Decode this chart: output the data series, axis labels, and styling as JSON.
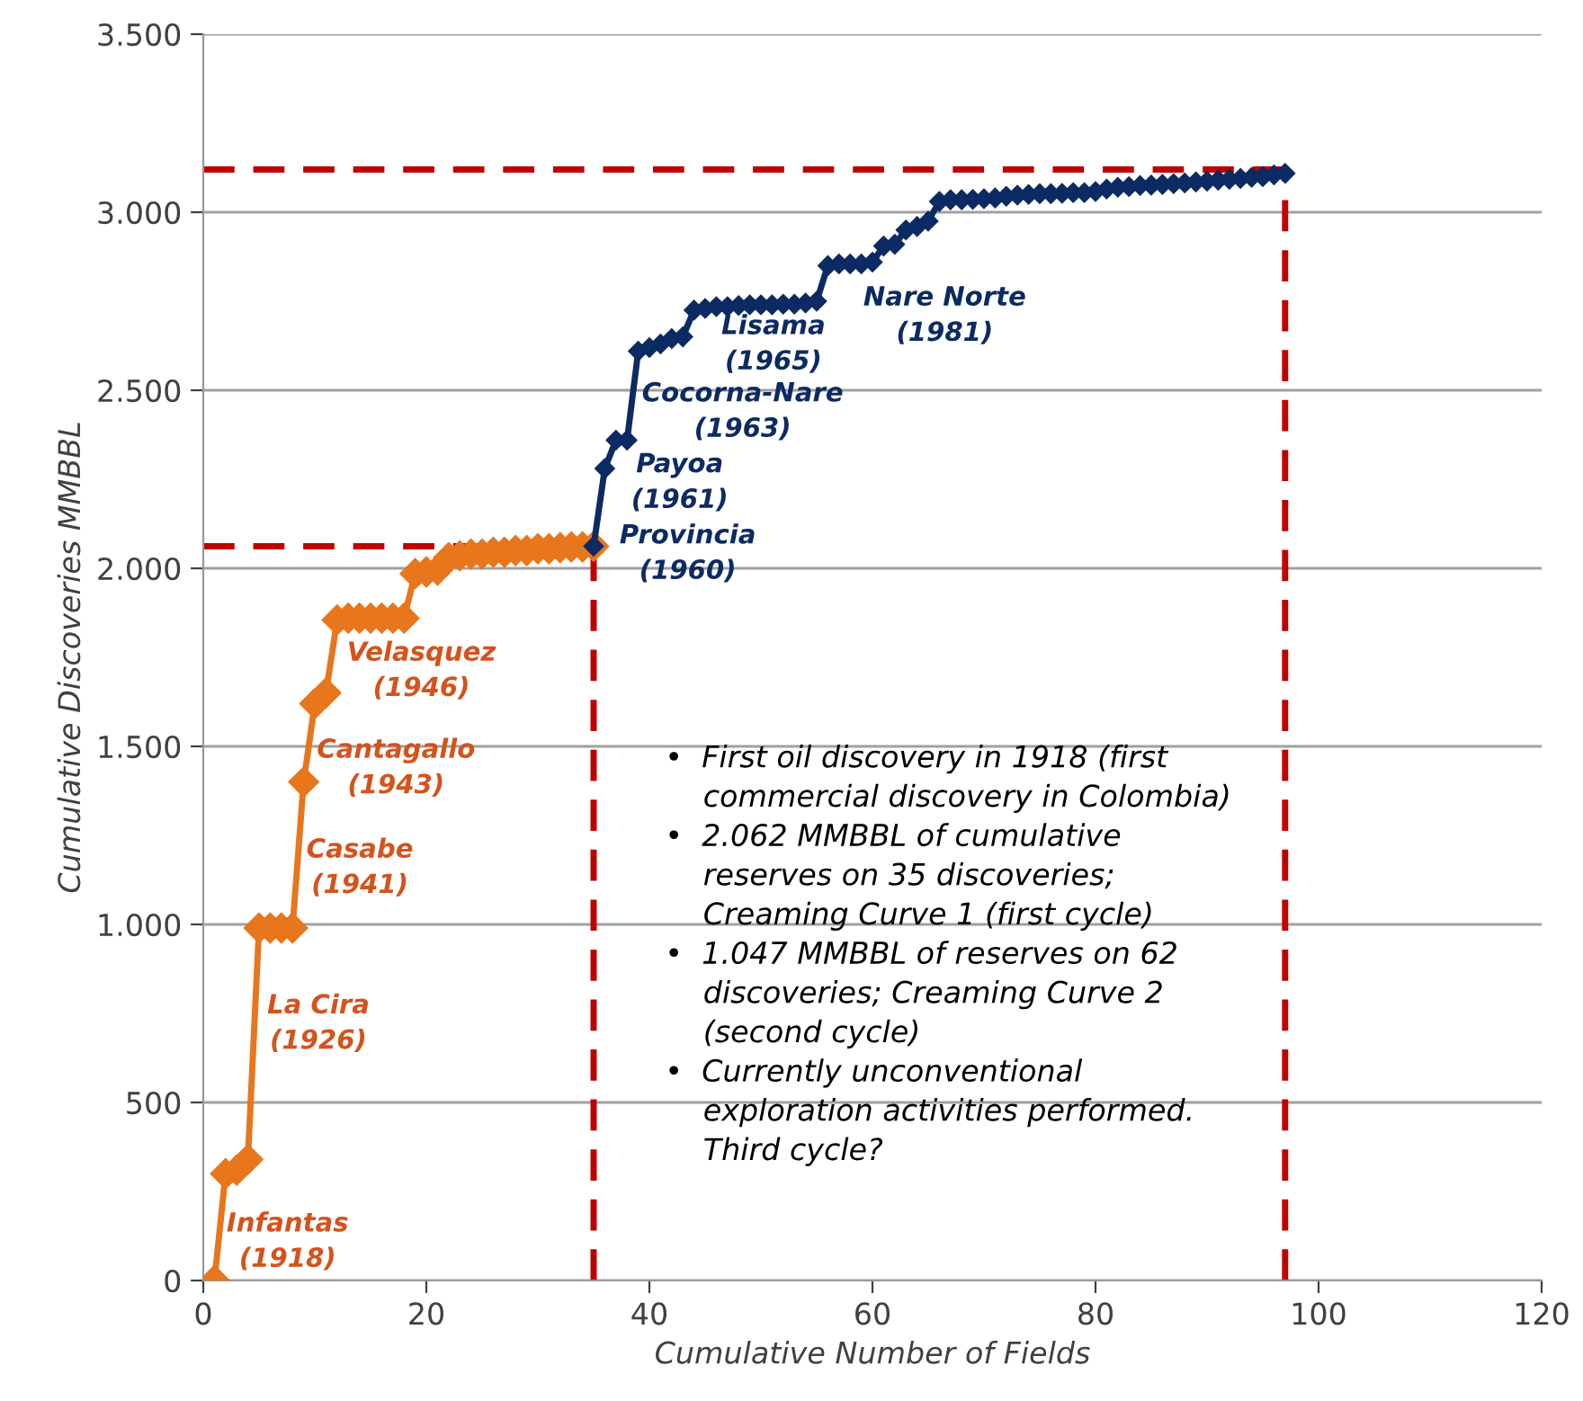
{
  "chart_data": {
    "type": "line",
    "xlabel": "Cumulative Number of Fields",
    "ylabel": "Cumulative Discoveries MMBBL",
    "series": [
      {
        "color": "#e8761c",
        "x": [
          1,
          2,
          3,
          4,
          5,
          6,
          7,
          8,
          9,
          10,
          11,
          12,
          13,
          14,
          15,
          16,
          17,
          18,
          19,
          20,
          21,
          22,
          23,
          24,
          25,
          26,
          27,
          28,
          29,
          30,
          31,
          32,
          33,
          34,
          35
        ],
        "values": [
          0,
          300,
          310,
          340,
          990,
          990,
          990,
          990,
          1400,
          1620,
          1650,
          1855,
          1860,
          1860,
          1860,
          1860,
          1860,
          1860,
          1985,
          1990,
          1995,
          2030,
          2035,
          2040,
          2040,
          2045,
          2045,
          2050,
          2050,
          2055,
          2055,
          2058,
          2060,
          2060,
          2062
        ]
      },
      {
        "color": "#0c2a63",
        "x": [
          35,
          36,
          37,
          38,
          39,
          40,
          41,
          42,
          43,
          44,
          45,
          46,
          47,
          48,
          49,
          50,
          51,
          52,
          53,
          54,
          55,
          56,
          57,
          58,
          59,
          60,
          61,
          62,
          63,
          64,
          65,
          66,
          67,
          68,
          69,
          70,
          71,
          72,
          73,
          74,
          75,
          76,
          77,
          78,
          79,
          80,
          81,
          82,
          83,
          84,
          85,
          86,
          87,
          88,
          89,
          90,
          91,
          92,
          93,
          94,
          95,
          96,
          97
        ],
        "values": [
          2062,
          2280,
          2360,
          2360,
          2610,
          2620,
          2630,
          2645,
          2650,
          2725,
          2730,
          2735,
          2735,
          2738,
          2740,
          2740,
          2740,
          2742,
          2742,
          2745,
          2750,
          2850,
          2855,
          2855,
          2855,
          2860,
          2905,
          2910,
          2950,
          2960,
          2975,
          3030,
          3035,
          3035,
          3036,
          3038,
          3040,
          3045,
          3048,
          3050,
          3052,
          3052,
          3053,
          3055,
          3055,
          3058,
          3065,
          3070,
          3072,
          3075,
          3076,
          3078,
          3080,
          3082,
          3085,
          3087,
          3090,
          3092,
          3095,
          3098,
          3100,
          3105,
          3109
        ]
      }
    ],
    "marker": "diamond",
    "line_style": "solid",
    "grid": "y",
    "xlim": [
      0,
      120
    ],
    "xticks": [
      0,
      20,
      40,
      60,
      80,
      100,
      120
    ],
    "ylim": [
      0,
      3500
    ],
    "yticks": [
      0,
      500,
      {
        "value": 1000,
        "label": "1.000"
      },
      {
        "value": 1500,
        "label": "1.500"
      },
      {
        "value": 2000,
        "label": "2.000"
      },
      {
        "value": 2500,
        "label": "2.500"
      },
      {
        "value": 3000,
        "label": "3.000"
      },
      {
        "value": 3500,
        "label": "3.500"
      }
    ],
    "ref_lines": [
      {
        "axis": "y",
        "value": 2062,
        "color": "#c00000",
        "line_style": "dashed"
      },
      {
        "axis": "x",
        "value": 35,
        "color": "#c00000",
        "line_style": "dashed"
      },
      {
        "axis": "y",
        "value": 3120,
        "color": "#c00000",
        "line_style": "dashed"
      },
      {
        "axis": "x",
        "value": 97,
        "color": "#c00000",
        "line_style": "dashed"
      }
    ],
    "annotations": [
      "Infantas\n(1918)",
      "La Cira\n(1926)",
      "Casabe\n(1941)",
      "Cantagallo\n(1943)",
      "Velasquez\n(1946)",
      "Provincia\n(1960)",
      "Payoa\n(1961)",
      "Cocorna-Nare\n(1963)",
      "Lisama\n(1965)",
      "Nare Norte\n(1981)",
      "•  First oil discovery in 1918 (first\n    commercial discovery in Colombia)\n•  2.062 MMBBL of cumulative\n    reserves on 35 discoveries;\n    Creaming Curve 1 (first cycle)\n•  1.047 MMBBL of reserves on 62\n    discoveries; Creaming Curve 2\n    (second cycle)\n•  Currently unconventional\n    exploration activities performed.\n    Third cycle?"
    ]
  }
}
